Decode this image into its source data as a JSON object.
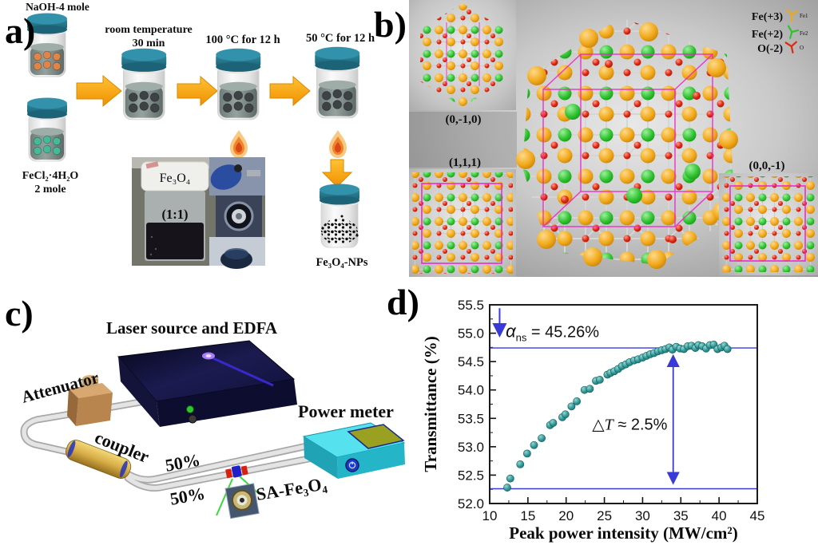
{
  "figure": {
    "panel_labels": {
      "a": "a)",
      "b": "b)",
      "c": "c)",
      "d": "d)"
    },
    "panel_a": {
      "reagent1": "NaOH-4 mole",
      "reagent2_line1": "FeCl₂·4H₂O",
      "reagent2_line2": "2 mole",
      "step1_line1": "room temperature",
      "step1_line2": "30 min",
      "step2": "100 °C for 12 h",
      "step3": "50 °C for 12 h",
      "photo_cap_label": "Fe₃O₄",
      "photo_ratio_label": "(1:1)",
      "product_label": "Fe₃O₄-NPs"
    },
    "panel_b": {
      "legend": [
        {
          "name": "Fe(+3)",
          "tag": "Fe1",
          "color": "#f0a818"
        },
        {
          "name": "Fe(+2)",
          "tag": "Fe2",
          "color": "#2ec22e"
        },
        {
          "name": "O(-2)",
          "tag": "O",
          "color": "#e02810"
        }
      ],
      "plane_top_left": "(0,-1,0)",
      "plane_bottom_left": "(1,1,1)",
      "plane_bottom_right": "(0,0,-1)"
    },
    "panel_c": {
      "laser_label": "Laser source and EDFA",
      "attenuator_label": "Attenuator",
      "coupler_label": "coupler",
      "branch_top_label": "50%",
      "branch_bottom_label": "50%",
      "sa_label": "SA-Fe₃O₄",
      "power_meter_label": "Power meter"
    }
  },
  "chart_data": {
    "type": "scatter",
    "title": "",
    "xlabel": "Peak power intensity (MW/cm²)",
    "ylabel": "Transmittance (%)",
    "xlim": [
      10,
      45
    ],
    "ylim": [
      52.0,
      55.5
    ],
    "x_ticks": [
      10,
      15,
      20,
      25,
      30,
      35,
      40,
      45
    ],
    "x_tick_labels": [
      "10",
      "15",
      "20",
      "25",
      "30",
      "35",
      "40",
      "45"
    ],
    "y_ticks": [
      52.0,
      52.5,
      53.0,
      53.5,
      54.0,
      54.5,
      55.0,
      55.5
    ],
    "y_tick_labels": [
      "52.0",
      "52.5",
      "53.0",
      "53.5",
      "54.0",
      "54.5",
      "55.0",
      "55.5"
    ],
    "x_minor_step": 2.5,
    "y_minor_step": 0.25,
    "grid": false,
    "point_color": "#2b8e8e",
    "annotation_color": "#3a3ad8",
    "saturation_line": 54.74,
    "baseline_line": 52.26,
    "delta_arrow_x": 34,
    "alpha_arrow_x": 11.3,
    "annotations": {
      "alpha": {
        "sym": "α",
        "sub": "ns",
        "rest": " = 45.26%"
      },
      "delta": {
        "pre": "△",
        "italic": "T",
        "rest": " ≈ 2.5%"
      }
    },
    "points": [
      [
        12.3,
        52.28
      ],
      [
        12.7,
        52.44
      ],
      [
        14.0,
        52.69
      ],
      [
        14.9,
        52.88
      ],
      [
        15.8,
        53.03
      ],
      [
        16.8,
        53.15
      ],
      [
        17.9,
        53.38
      ],
      [
        18.3,
        53.42
      ],
      [
        19.5,
        53.52
      ],
      [
        19.9,
        53.57
      ],
      [
        20.7,
        53.71
      ],
      [
        21.4,
        53.8
      ],
      [
        22.4,
        54.0
      ],
      [
        23.1,
        54.02
      ],
      [
        23.9,
        54.16
      ],
      [
        24.4,
        54.18
      ],
      [
        25.4,
        54.27
      ],
      [
        25.8,
        54.3
      ],
      [
        26.3,
        54.33
      ],
      [
        26.8,
        54.37
      ],
      [
        27.3,
        54.42
      ],
      [
        27.8,
        54.45
      ],
      [
        28.3,
        54.49
      ],
      [
        28.9,
        54.52
      ],
      [
        29.4,
        54.54
      ],
      [
        30.0,
        54.57
      ],
      [
        30.5,
        54.6
      ],
      [
        31.0,
        54.63
      ],
      [
        31.5,
        54.65
      ],
      [
        32.0,
        54.68
      ],
      [
        32.5,
        54.7
      ],
      [
        33.0,
        54.72
      ],
      [
        33.5,
        54.75
      ],
      [
        33.9,
        54.71
      ],
      [
        34.4,
        54.76
      ],
      [
        34.9,
        54.73
      ],
      [
        35.4,
        54.72
      ],
      [
        35.9,
        54.77
      ],
      [
        36.4,
        54.78
      ],
      [
        36.9,
        54.74
      ],
      [
        37.3,
        54.79
      ],
      [
        37.8,
        54.77
      ],
      [
        38.3,
        54.73
      ],
      [
        38.8,
        54.79
      ],
      [
        39.3,
        54.8
      ],
      [
        39.8,
        54.72
      ],
      [
        40.3,
        54.75
      ],
      [
        40.7,
        54.78
      ],
      [
        41.1,
        54.72
      ]
    ]
  }
}
